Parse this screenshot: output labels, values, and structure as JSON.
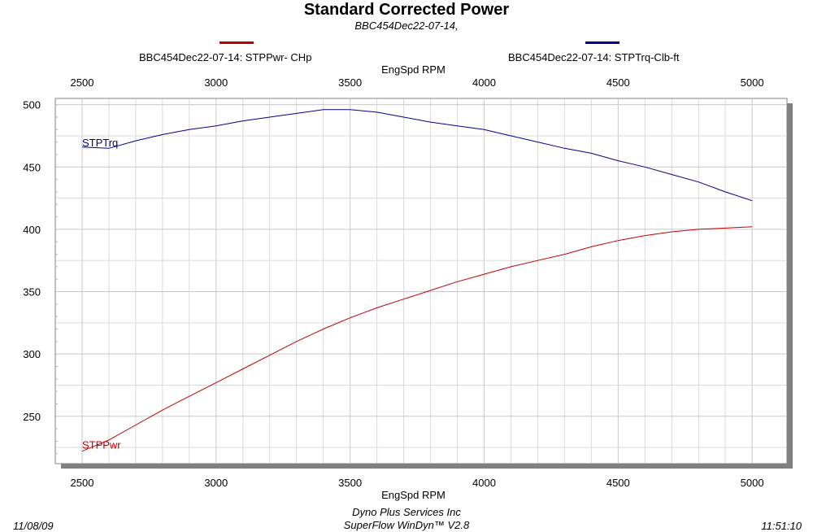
{
  "header": {
    "title": "Standard Corrected Power",
    "subtitle": "BBC454Dec22-07-14,"
  },
  "footer": {
    "date": "11/08/09",
    "company": "Dyno Plus Services Inc",
    "software": "SuperFlow WinDyn™ V2.8",
    "time": "11:51:10"
  },
  "colors": {
    "power": "#c00000",
    "torque": "#00008b",
    "grid": "#d9d9d9",
    "shadow": "#808080"
  },
  "chart_data": {
    "type": "line",
    "title": "Standard Corrected Power",
    "subtitle": "BBC454Dec22-07-14,",
    "xlabel": "EngSpd  RPM",
    "ylabel": "",
    "xlim": [
      2400,
      5130
    ],
    "ylim": [
      212,
      505
    ],
    "x_ticks": [
      2500,
      3000,
      3500,
      4000,
      4500,
      5000
    ],
    "y_ticks": [
      250,
      300,
      350,
      400,
      450,
      500
    ],
    "grid": true,
    "legend_position": "top",
    "series": [
      {
        "name": "BBC454Dec22-07-14: STPPwr- CHp",
        "label": "STPPwr",
        "color": "#c00000",
        "x": [
          2500,
          2600,
          2700,
          2800,
          2900,
          3000,
          3100,
          3200,
          3300,
          3400,
          3500,
          3600,
          3700,
          3800,
          3900,
          4000,
          4100,
          4200,
          4300,
          4400,
          4500,
          4600,
          4700,
          4800,
          4900,
          5000
        ],
        "values": [
          222,
          231,
          243,
          255,
          266,
          277,
          288,
          299,
          310,
          320,
          329,
          337,
          344,
          351,
          358,
          364,
          370,
          375,
          380,
          386,
          391,
          395,
          398,
          400,
          401,
          402
        ]
      },
      {
        "name": "BBC454Dec22-07-14: STPTrq-Clb-ft",
        "label": "STPTrq",
        "color": "#00008b",
        "x": [
          2500,
          2600,
          2700,
          2800,
          2900,
          3000,
          3100,
          3200,
          3300,
          3400,
          3500,
          3600,
          3700,
          3800,
          3900,
          4000,
          4100,
          4200,
          4300,
          4400,
          4500,
          4600,
          4700,
          4800,
          4900,
          5000
        ],
        "values": [
          466,
          465,
          471,
          476,
          480,
          483,
          487,
          490,
          493,
          496,
          496,
          494,
          490,
          486,
          483,
          480,
          475,
          470,
          465,
          461,
          455,
          450,
          444,
          438,
          430,
          423
        ]
      }
    ]
  }
}
